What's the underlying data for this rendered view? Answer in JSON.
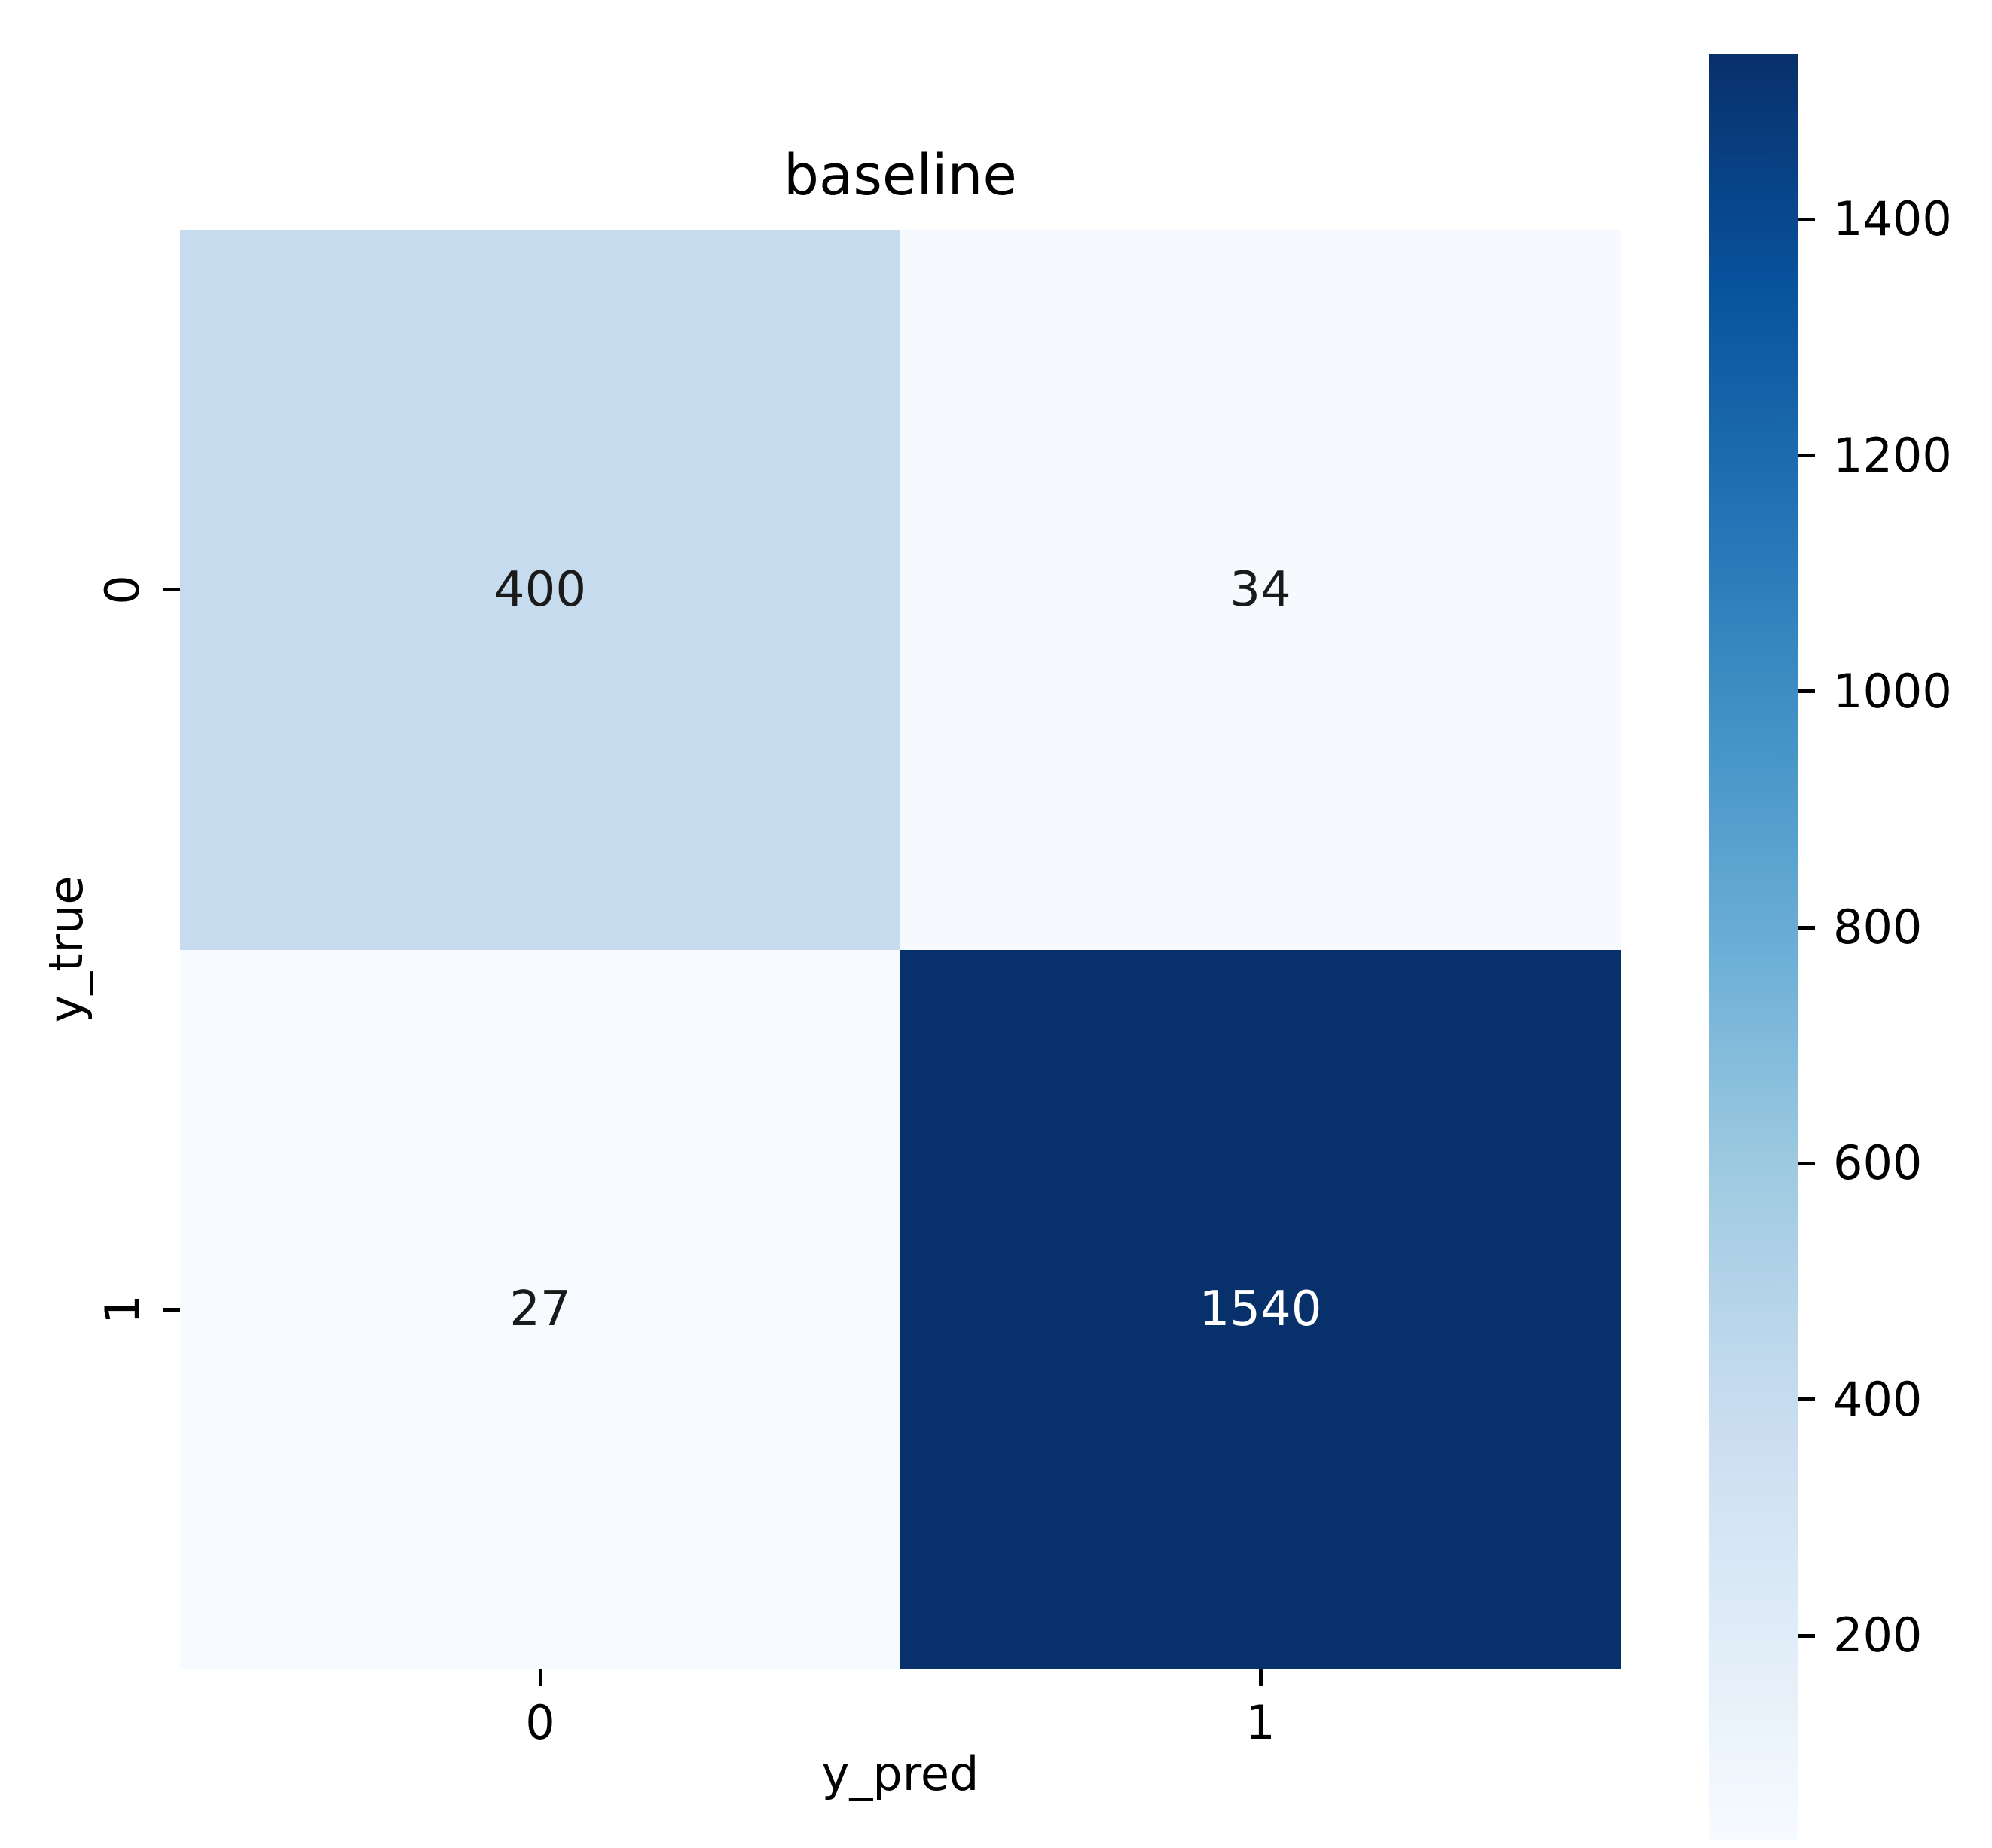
{
  "figure": {
    "title": "baseline",
    "background": "#ffffff"
  },
  "chart_data": {
    "type": "heatmap",
    "title": "baseline",
    "xlabel": "y_pred",
    "ylabel": "y_true",
    "x_tick_labels": [
      "0",
      "1"
    ],
    "y_tick_labels": [
      "0",
      "1"
    ],
    "matrix": [
      [
        400,
        34
      ],
      [
        27,
        1540
      ]
    ],
    "vmin": 27,
    "vmax": 1540,
    "colormap": "Blues",
    "colorbar_ticks": [
      200,
      400,
      600,
      800,
      1000,
      1200,
      1400
    ],
    "legend_position": "right-colorbar",
    "grid": false,
    "colors": {
      "cmap_anchors": [
        "#f7fbff",
        "#deebf7",
        "#c6dbef",
        "#9ecae1",
        "#6baed6",
        "#4292c6",
        "#2171b5",
        "#08519c",
        "#08306b"
      ],
      "cell_colors": [
        [
          "#c7dcef",
          "#f6fafe"
        ],
        [
          "#f6fafe",
          "#08306b"
        ]
      ],
      "annotation_dark": "#1a1a1a",
      "annotation_light": "#ffffff",
      "tick_color": "#000000",
      "text_color": "#000000"
    }
  }
}
